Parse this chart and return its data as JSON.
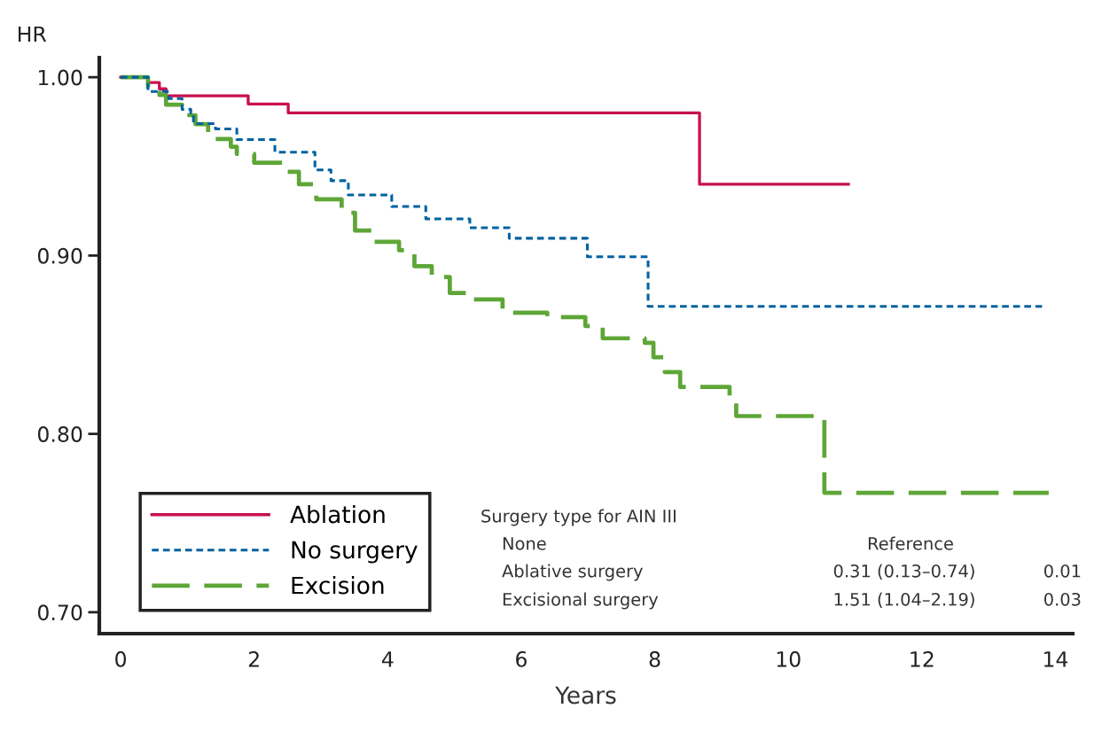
{
  "chart_data": {
    "type": "step",
    "xlabel": "Years",
    "ylabel": "HR",
    "xlim": [
      -0.32,
      14.26
    ],
    "ylim": [
      0.688,
      1.011
    ],
    "xticks": [
      0,
      2,
      4,
      6,
      8,
      10,
      12,
      14
    ],
    "yticks": [
      {
        "value": 0.7,
        "label": "0.70"
      },
      {
        "value": 0.8,
        "label": "0.80"
      },
      {
        "value": 0.9,
        "label": "0.90"
      },
      {
        "value": 1.0,
        "label": "1.00"
      }
    ],
    "grid": false,
    "legend": "bottom left",
    "marker": "none",
    "series": [
      {
        "name": "Ablation",
        "color": "#c8104e",
        "line_style": "solid",
        "x": [
          0,
          0.41,
          0.58,
          0.68,
          1.91,
          2.51,
          8.67,
          10.9
        ],
        "values": [
          1.0,
          0.997,
          0.9935,
          0.9896,
          0.985,
          0.98,
          0.94,
          0.94
        ]
      },
      {
        "name": "No surgery",
        "color": "#0062a0",
        "line_style": "dotted",
        "x": [
          0,
          0.41,
          0.72,
          0.92,
          1.05,
          1.09,
          1.42,
          1.74,
          2.31,
          2.91,
          3.15,
          3.41,
          4.06,
          4.57,
          5.23,
          5.82,
          6.99,
          7.9,
          13.8
        ],
        "values": [
          1.0,
          0.992,
          0.988,
          0.982,
          0.98,
          0.974,
          0.971,
          0.965,
          0.958,
          0.948,
          0.942,
          0.934,
          0.9275,
          0.9206,
          0.9156,
          0.9097,
          0.8993,
          0.8715,
          0.8715
        ]
      },
      {
        "name": "Excision",
        "color": "#5ea637",
        "line_style": "dashed",
        "x": [
          0,
          0.41,
          0.58,
          0.68,
          0.92,
          1.12,
          1.31,
          1.65,
          1.74,
          2.0,
          2.48,
          2.67,
          2.93,
          3.31,
          3.51,
          3.77,
          4.17,
          4.4,
          4.66,
          4.93,
          5.27,
          5.72,
          6.39,
          6.96,
          7.22,
          7.85,
          7.98,
          8.15,
          8.38,
          9.12,
          9.22,
          10.54,
          13.9
        ],
        "values": [
          1.0,
          0.9945,
          0.99,
          0.9846,
          0.9787,
          0.9737,
          0.9653,
          0.961,
          0.957,
          0.952,
          0.947,
          0.94,
          0.9315,
          0.924,
          0.914,
          0.9077,
          0.903,
          0.894,
          0.888,
          0.879,
          0.8754,
          0.868,
          0.8655,
          0.8605,
          0.8536,
          0.851,
          0.843,
          0.8347,
          0.8263,
          0.8213,
          0.81,
          0.767,
          0.767
        ]
      }
    ],
    "annotations": [
      "Surgery type for AIN III",
      "None",
      "Reference",
      "Ablative surgery",
      "0.31 (0.13–0.74)",
      "0.01",
      "Excisional surgery",
      "1.51 (1.04–2.19)",
      "0.03"
    ]
  }
}
